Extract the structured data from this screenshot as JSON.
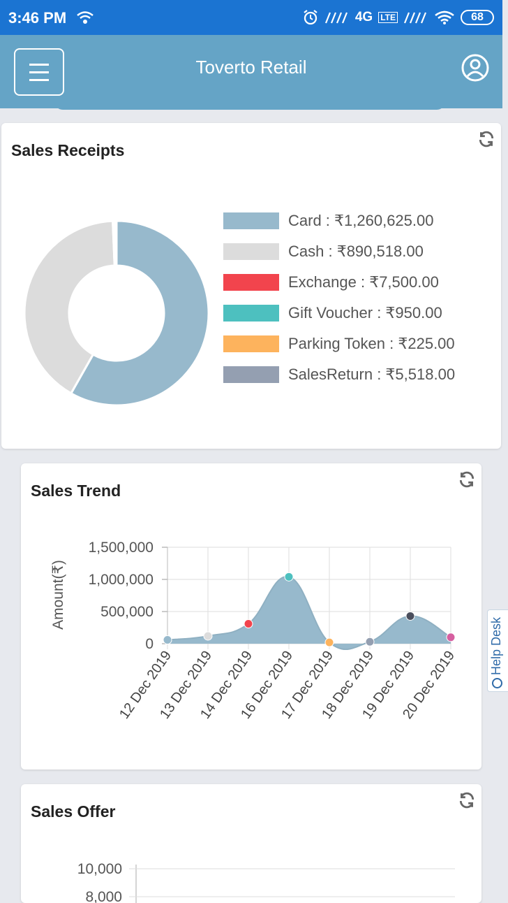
{
  "status_bar": {
    "time": "3:46 PM",
    "network": "4G",
    "lte": "LTE",
    "battery": "68"
  },
  "app_bar": {
    "title": "Toverto Retail"
  },
  "sales_receipts": {
    "title": "Sales Receipts",
    "chart_data": {
      "type": "pie",
      "labels": [
        "Card",
        "Cash",
        "Exchange",
        "Gift Voucher",
        "Parking Token",
        "SalesReturn"
      ],
      "values": [
        1260625.0,
        890518.0,
        7500.0,
        950.0,
        225.0,
        5518.0
      ],
      "display_values": [
        "₹1,260,625.00",
        "₹890,518.00",
        "₹7,500.00",
        "₹950.00",
        "₹225.00",
        "₹5,518.00"
      ],
      "colors": [
        "#97b9cc",
        "#dcdcdc",
        "#f2444d",
        "#4dc0bf",
        "#fdb35d",
        "#949fb1"
      ],
      "legend_position": "right"
    }
  },
  "sales_trend": {
    "title": "Sales Trend",
    "chart_data": {
      "type": "area",
      "categories": [
        "12 Dec 2019",
        "13 Dec 2019",
        "14 Dec 2019",
        "16 Dec 2019",
        "17 Dec 2019",
        "18 Dec 2019",
        "19 Dec 2019",
        "20 Dec 2019"
      ],
      "series": [
        {
          "values": [
            60000,
            120000,
            310000,
            1040000,
            20000,
            30000,
            430000,
            100000
          ]
        }
      ],
      "point_colors": [
        "#97b9cc",
        "#dcdcdc",
        "#f2444d",
        "#4dc0bf",
        "#fdb35d",
        "#949fb1",
        "#4a4e5c",
        "#d65fa0"
      ],
      "fill_color": "#97b9cc",
      "ylabel": "Amount(₹)",
      "yticks": [
        "1,500,000",
        "1,000,000",
        "500,000",
        "0"
      ],
      "ytick_values": [
        1500000,
        1000000,
        500000,
        0
      ],
      "ylim": [
        0,
        1500000
      ],
      "grid": true
    }
  },
  "sales_offer": {
    "title": "Sales Offer",
    "chart_data": {
      "type": "bar",
      "yticks": [
        "10,000",
        "8,000"
      ],
      "ytick_values": [
        10000,
        8000
      ],
      "grid": true
    }
  },
  "help_desk": {
    "label": "Help Desk"
  }
}
